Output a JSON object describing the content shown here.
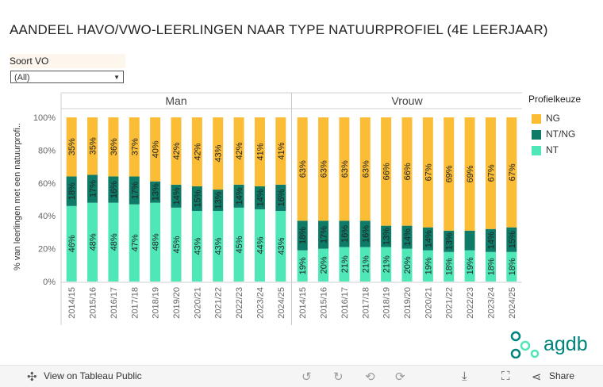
{
  "title": "AANDEEL HAVO/VWO-LEERLINGEN NAAR TYPE NATUURPROFIEL (4E LEERJAAR)",
  "filter": {
    "label": "Soort VO",
    "value": "(All)"
  },
  "legend": {
    "title": "Profielkeuze",
    "items": [
      {
        "label": "NG",
        "color": "#fbbd36"
      },
      {
        "label": "NT/NG",
        "color": "#0d7b67"
      },
      {
        "label": "NT",
        "color": "#4fe7b8"
      }
    ]
  },
  "chart_data": {
    "type": "bar",
    "stacked": true,
    "ylabel": "% van leerlingen met een natuurprofi..",
    "yticks": [
      "0%",
      "20%",
      "40%",
      "60%",
      "80%",
      "100%"
    ],
    "ylim": [
      0,
      100
    ],
    "categories": [
      "2014/15",
      "2015/16",
      "2016/17",
      "2017/18",
      "2018/19",
      "2019/20",
      "2020/21",
      "2021/22",
      "2022/23",
      "2023/24",
      "2024/25"
    ],
    "panels": [
      {
        "name": "Man",
        "series": [
          {
            "name": "NT",
            "values": [
              46,
              48,
              48,
              47,
              48,
              45,
              43,
              43,
              45,
              44,
              43
            ],
            "labels": [
              "46%",
              "48%",
              "48%",
              "47%",
              "48%",
              "45%",
              "43%",
              "43%",
              "45%",
              "44%",
              "43%"
            ]
          },
          {
            "name": "NT/NG",
            "values": [
              18,
              17,
              16,
              17,
              13,
              14,
              15,
              13,
              14,
              14,
              16
            ],
            "labels": [
              "18%",
              "17%",
              "16%",
              "17%",
              "13%",
              "14%",
              "15%",
              "13%",
              "14%",
              "14%",
              "16%"
            ]
          },
          {
            "name": "NG",
            "values": [
              35,
              35,
              36,
              37,
              40,
              42,
              42,
              43,
              42,
              41,
              41
            ],
            "labels": [
              "35%",
              "35%",
              "36%",
              "37%",
              "40%",
              "42%",
              "42%",
              "43%",
              "42%",
              "41%",
              "41%"
            ]
          }
        ]
      },
      {
        "name": "Vrouw",
        "series": [
          {
            "name": "NT",
            "values": [
              19,
              20,
              21,
              21,
              21,
              20,
              19,
              18,
              19,
              18,
              18
            ],
            "labels": [
              "19%",
              "20%",
              "21%",
              "21%",
              "21%",
              "20%",
              "19%",
              "18%",
              "19%",
              "18%",
              "18%"
            ]
          },
          {
            "name": "NT/NG",
            "values": [
              18,
              17,
              16,
              16,
              13,
              14,
              14,
              13,
              12,
              14,
              15
            ],
            "labels": [
              "18%",
              "17%",
              "16%",
              "16%",
              "13%",
              "14%",
              "14%",
              "13%",
              "",
              "14%",
              "15%"
            ]
          },
          {
            "name": "NG",
            "values": [
              63,
              63,
              63,
              63,
              66,
              66,
              67,
              69,
              69,
              67,
              67
            ],
            "labels": [
              "63%",
              "63%",
              "63%",
              "63%",
              "66%",
              "66%",
              "67%",
              "69%",
              "69%",
              "67%",
              "67%"
            ]
          }
        ]
      }
    ]
  },
  "logo": {
    "text": "agdb"
  },
  "toolbar": {
    "view_label": "View on Tableau Public",
    "share_label": "Share"
  }
}
